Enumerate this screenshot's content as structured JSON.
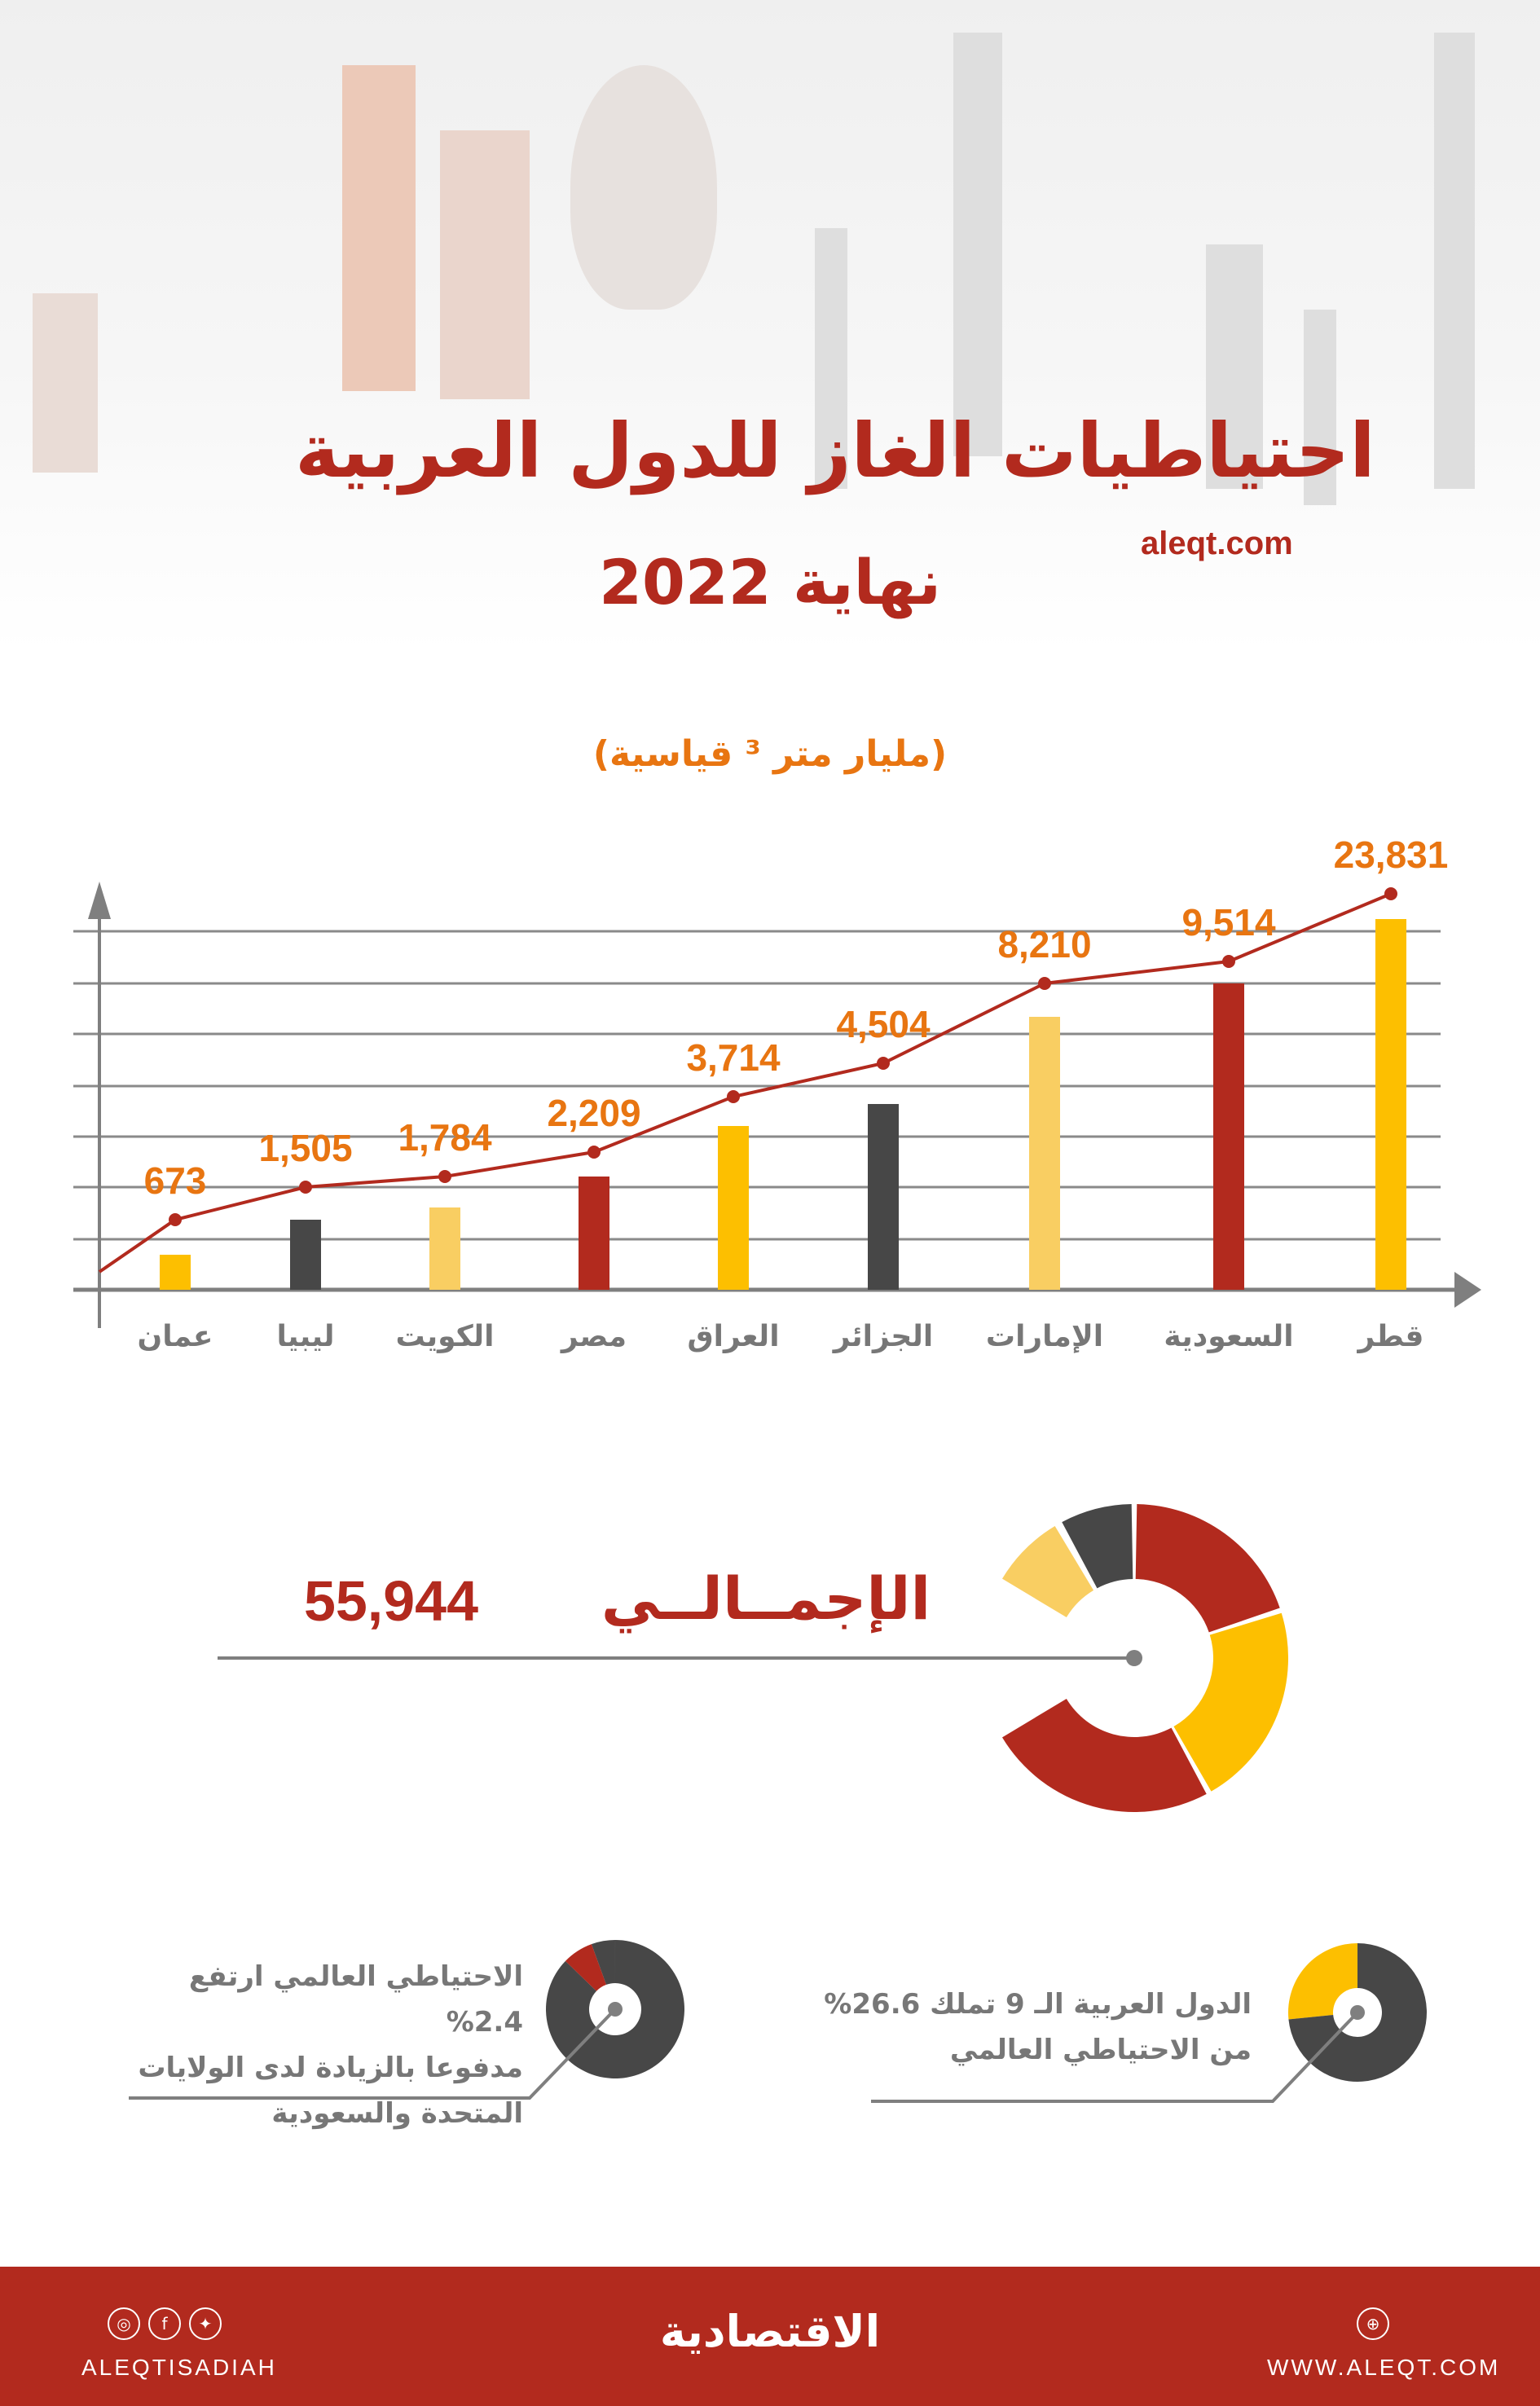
{
  "header": {
    "title": "احتياطيات الغاز للدول العربية",
    "subtitle": "نهاية 2022",
    "site": "aleqt.com",
    "unit": "(مليار متر ³ قياسية)"
  },
  "colors": {
    "red": "#B22A1E",
    "yellow": "#FDBF00",
    "light_yellow": "#F9CE62",
    "dark": "#474747",
    "orange": "#E87511",
    "gray": "#7F7F7F"
  },
  "chart_data": {
    "type": "bar",
    "title": "احتياطيات الغاز للدول العربية",
    "ylabel": "(مليار متر ³ قياسية)",
    "grid": true,
    "categories": [
      "عمان",
      "ليبيا",
      "الكويت",
      "مصر",
      "العراق",
      "الجزائر",
      "الإمارات",
      "السعودية",
      "قطر"
    ],
    "values": [
      673,
      1505,
      1784,
      2209,
      3714,
      4504,
      8210,
      9514,
      23831
    ],
    "labels": [
      "673",
      "1,505",
      "1,784",
      "2,209",
      "3,714",
      "4,504",
      "8,210",
      "9,514",
      "23,831"
    ],
    "bar_colors": [
      "#FDBF00",
      "#474747",
      "#F9CE62",
      "#B22A1E",
      "#FDBF00",
      "#474747",
      "#F9CE62",
      "#B22A1E",
      "#FDBF00"
    ],
    "line_color": "#B22A1E"
  },
  "total": {
    "label": "الإجمــالــي",
    "value": "55,944",
    "donut_colors": [
      "#B22A1E",
      "#FDBF00",
      "#B22A1E",
      "#F9CE62",
      "#474747"
    ]
  },
  "notes": [
    {
      "lines": [
        "الاحتياطي العالمي ارتفع 2.4%",
        "مدفوعا بالزيادة لدى الولايات",
        "المتحدة والسعودية"
      ],
      "share_percent": 2.4,
      "colors": [
        "#B22A1E",
        "#474747"
      ]
    },
    {
      "lines": [
        "الدول العربية الـ 9 تملك 26.6%",
        "من الاحتياطي العالمي"
      ],
      "share_percent": 26.6,
      "colors": [
        "#FDBF00",
        "#474747"
      ]
    }
  ],
  "footer": {
    "social_handle": "ALEQTISADIAH",
    "logo": "الاقتصادية",
    "website": "WWW.ALEQT.COM",
    "icons": [
      "instagram-icon",
      "facebook-icon",
      "twitter-icon",
      "globe-icon"
    ]
  }
}
